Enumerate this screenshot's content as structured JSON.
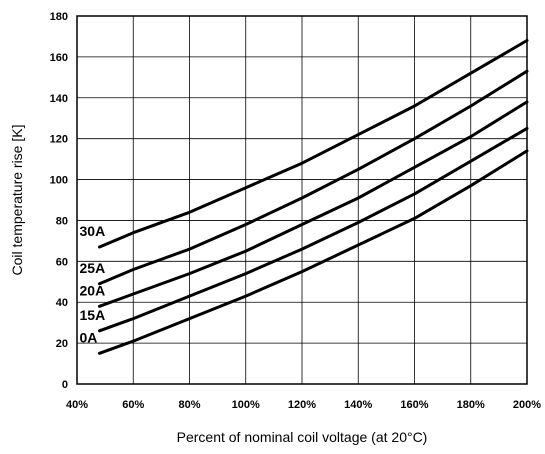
{
  "chart_data": {
    "type": "line",
    "title": "",
    "xlabel": "Percent of nominal coil voltage (at 20°C)",
    "ylabel": "Coil temperature rise [K]",
    "xlim": [
      40,
      200
    ],
    "ylim": [
      0,
      180
    ],
    "x_ticks": [
      40,
      60,
      80,
      100,
      120,
      140,
      160,
      180,
      200
    ],
    "x_tick_labels": [
      "40%",
      "60%",
      "80%",
      "100%",
      "120%",
      "140%",
      "160%",
      "180%",
      "200%"
    ],
    "y_ticks": [
      0,
      20,
      40,
      60,
      80,
      100,
      120,
      140,
      160,
      180
    ],
    "y_tick_labels": [
      "0",
      "20",
      "40",
      "60",
      "80",
      "100",
      "120",
      "140",
      "160",
      "180"
    ],
    "grid": true,
    "legend": "none",
    "series": [
      {
        "name": "30A",
        "x": [
          48,
          60,
          80,
          100,
          120,
          140,
          160,
          180,
          200
        ],
        "y": [
          67,
          74,
          84,
          96,
          108,
          122,
          136,
          152,
          168
        ]
      },
      {
        "name": "25A",
        "x": [
          48,
          60,
          80,
          100,
          120,
          140,
          160,
          180,
          200
        ],
        "y": [
          49,
          56,
          66,
          78,
          91,
          105,
          120,
          136,
          153
        ]
      },
      {
        "name": "20A",
        "x": [
          48,
          60,
          80,
          100,
          120,
          140,
          160,
          180,
          200
        ],
        "y": [
          38,
          44,
          54,
          65,
          78,
          91,
          106,
          121,
          138
        ]
      },
      {
        "name": "15A",
        "x": [
          48,
          60,
          80,
          100,
          120,
          140,
          160,
          180,
          200
        ],
        "y": [
          26,
          32,
          43,
          54,
          66,
          79,
          93,
          109,
          125
        ]
      },
      {
        "name": "0A",
        "x": [
          48,
          60,
          80,
          100,
          120,
          140,
          160,
          180,
          200
        ],
        "y": [
          15,
          21,
          32,
          43,
          55,
          68,
          81,
          97,
          114
        ]
      }
    ]
  }
}
